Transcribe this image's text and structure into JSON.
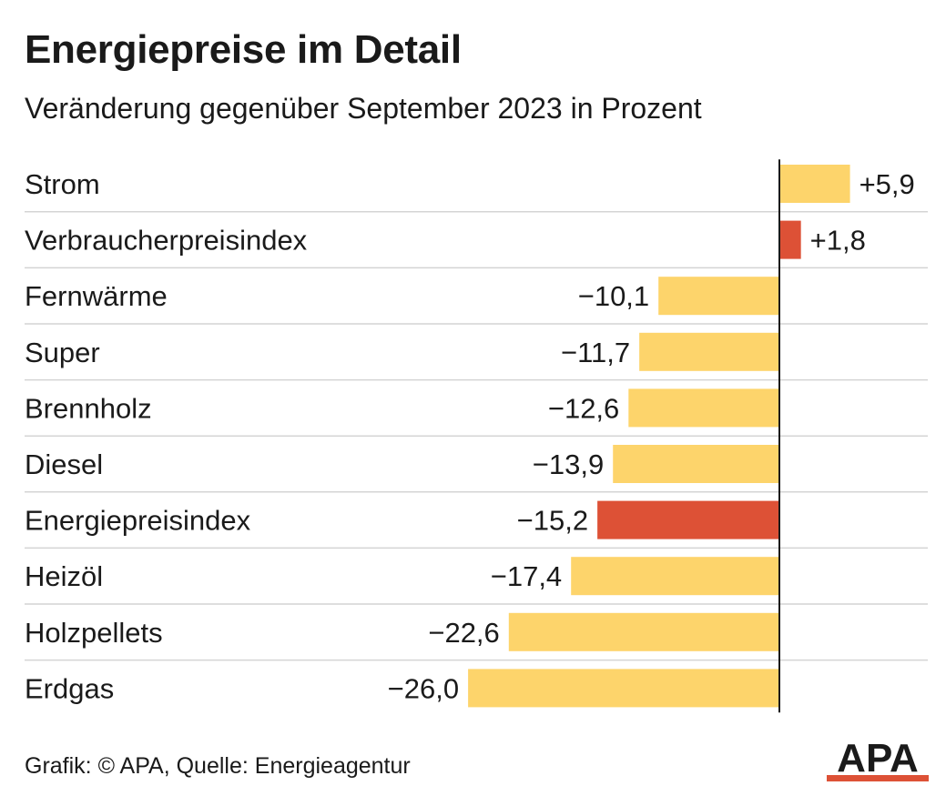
{
  "title": "Energiepreise im Detail",
  "subtitle": "Veränderung gegenüber September 2023 in Prozent",
  "source": "Grafik: © APA, Quelle: Energieagentur",
  "logo_text": "APA",
  "colors": {
    "bar_default": "#fdd46b",
    "bar_highlight": "#dd5136",
    "gridline": "#d4d4d4",
    "axis": "#1a1a1a",
    "text": "#1a1a1a",
    "logo": "#1a1a1a",
    "logo_accent": "#dd5136"
  },
  "chart_data": {
    "type": "bar",
    "orientation": "horizontal",
    "title": "Energiepreise im Detail",
    "subtitle": "Veränderung gegenüber September 2023 in Prozent",
    "categories": [
      "Strom",
      "Verbraucherpreisindex",
      "Fernwärme",
      "Super",
      "Brennholz",
      "Diesel",
      "Energiepreisindex",
      "Heizöl",
      "Holzpellets",
      "Erdgas"
    ],
    "values": [
      5.9,
      1.8,
      -10.1,
      -11.7,
      -12.6,
      -13.9,
      -15.2,
      -17.4,
      -22.6,
      -26.0
    ],
    "value_labels": [
      "+5,9",
      "+1,8",
      "−10,1",
      "−11,7",
      "−12,6",
      "−13,9",
      "−15,2",
      "−17,4",
      "−22,6",
      "−26,0"
    ],
    "highlight": [
      false,
      true,
      false,
      false,
      false,
      false,
      true,
      false,
      false,
      false
    ],
    "xlim": [
      -26.0,
      5.9
    ],
    "grid": true,
    "legend": "none"
  }
}
